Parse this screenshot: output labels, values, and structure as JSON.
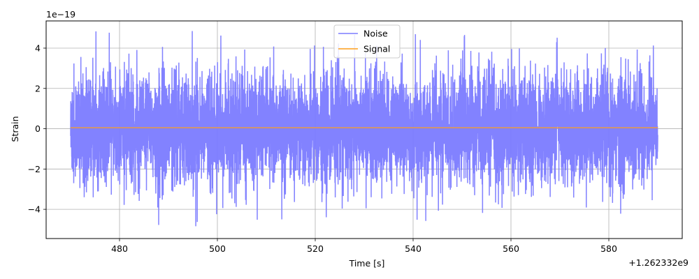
{
  "chart_data": {
    "type": "line",
    "xlabel": "Time [s]",
    "ylabel": "Strain",
    "x_offset_label": "+1.262332e9",
    "y_scale_label": "1e−19",
    "xlim": [
      465,
      595
    ],
    "ylim": [
      -5.45,
      5.35
    ],
    "x_ticks": [
      480,
      500,
      520,
      540,
      560,
      580
    ],
    "x_tick_labels": [
      "480",
      "500",
      "520",
      "540",
      "560",
      "580"
    ],
    "y_ticks": [
      -4,
      -2,
      0,
      2,
      4
    ],
    "y_tick_labels": [
      "−4",
      "−2",
      "0",
      "2",
      "4"
    ],
    "grid": true,
    "legend_position": "top-center",
    "series": [
      {
        "name": "Noise",
        "color": "#7b7bff",
        "x_range": [
          470,
          590
        ],
        "envelope_typical": 2.1,
        "envelope_max": 4.85,
        "envelope_min": -5.0
      },
      {
        "name": "Signal",
        "color": "#ff9f1c",
        "x_range": [
          470,
          590
        ],
        "values_constant": 0.05
      }
    ]
  }
}
